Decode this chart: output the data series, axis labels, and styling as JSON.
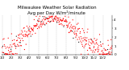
{
  "title": "Milwaukee Weather Solar Radiation",
  "subtitle": "Avg per Day W/m²/minute",
  "ylim": [
    0,
    4.5
  ],
  "yticks": [
    0,
    1,
    2,
    3,
    4
  ],
  "ytick_labels": [
    "0",
    "1",
    "2",
    "3",
    "4"
  ],
  "background_color": "#ffffff",
  "grid_color": "#aaaaaa",
  "dot_color_red": "#ff0000",
  "dot_color_black": "#111111",
  "title_fontsize": 4.0,
  "tick_fontsize": 3.0,
  "n_days": 365,
  "seed": 42,
  "month_starts": [
    0,
    31,
    59,
    90,
    120,
    151,
    181,
    212,
    243,
    273,
    304,
    334
  ],
  "month_labels": [
    "1/2",
    "2/2",
    "3/2",
    "4/2",
    "5/2",
    "6/2",
    "7/2",
    "8/2",
    "9/2",
    "10/2",
    "11/2",
    "12/2"
  ]
}
